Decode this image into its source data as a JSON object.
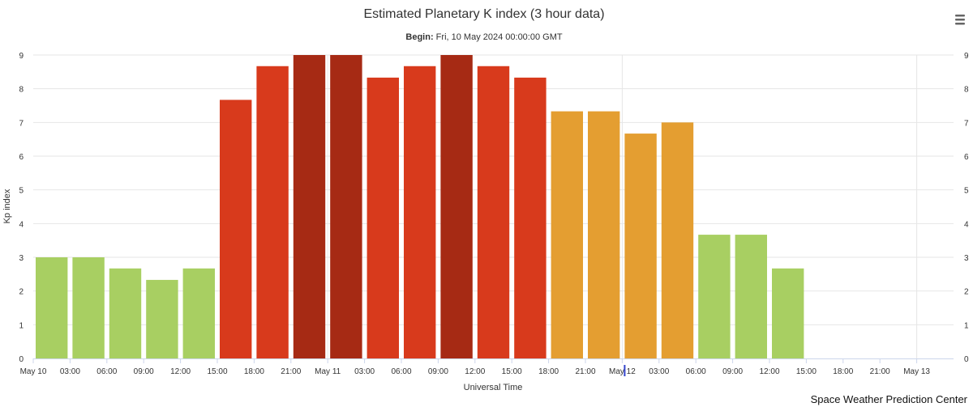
{
  "chart_data": {
    "type": "bar",
    "title": "Estimated Planetary K index (3 hour data)",
    "subtitle_label": "Begin:",
    "subtitle_value": " Fri, 10 May 2024 00:00:00 GMT",
    "xlabel": "Universal Time",
    "ylabel": "Kp index",
    "ylim": [
      0,
      9
    ],
    "yticks": [
      0,
      1,
      2,
      3,
      4,
      5,
      6,
      7,
      8,
      9
    ],
    "xticks": [
      "May 10",
      "03:00",
      "06:00",
      "09:00",
      "12:00",
      "15:00",
      "18:00",
      "21:00",
      "May 11",
      "03:00",
      "06:00",
      "09:00",
      "12:00",
      "15:00",
      "18:00",
      "21:00",
      "May 12",
      "03:00",
      "06:00",
      "09:00",
      "12:00",
      "15:00",
      "18:00",
      "21:00",
      "May 13"
    ],
    "categories": [
      "May 10 00:00",
      "May 10 03:00",
      "May 10 06:00",
      "May 10 09:00",
      "May 10 12:00",
      "May 10 15:00",
      "May 10 18:00",
      "May 10 21:00",
      "May 11 00:00",
      "May 11 03:00",
      "May 11 06:00",
      "May 11 09:00",
      "May 11 12:00",
      "May 11 15:00",
      "May 11 18:00",
      "May 11 21:00",
      "May 12 00:00",
      "May 12 03:00",
      "May 12 06:00",
      "May 12 09:00",
      "May 12 12:00"
    ],
    "values": [
      3.0,
      3.0,
      2.67,
      2.33,
      2.67,
      7.67,
      8.67,
      9.0,
      9.0,
      8.33,
      8.67,
      9.0,
      8.67,
      8.33,
      7.33,
      7.33,
      6.67,
      7.0,
      3.67,
      3.67,
      2.67
    ],
    "bar_colors": [
      "#a8cf62",
      "#a8cf62",
      "#a8cf62",
      "#a8cf62",
      "#a8cf62",
      "#d83a1c",
      "#d83a1c",
      "#a62a14",
      "#a62a14",
      "#d83a1c",
      "#d83a1c",
      "#a62a14",
      "#d83a1c",
      "#d83a1c",
      "#e49e31",
      "#e49e31",
      "#e49e31",
      "#e49e31",
      "#a8cf62",
      "#a8cf62",
      "#a8cf62"
    ],
    "grid": true,
    "legend": "none",
    "credit": "Space Weather Prediction Center",
    "menu_icon": "hamburger-menu-icon"
  }
}
